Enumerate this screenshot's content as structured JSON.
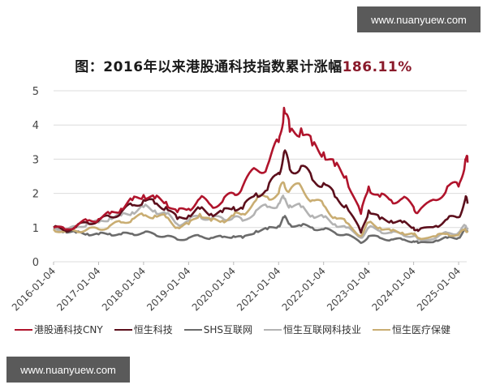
{
  "watermark": {
    "text": "www.nuanyuew.com"
  },
  "title": {
    "main": "图：2016年以来港股通科技指数累计涨幅",
    "highlight": "186.11%"
  },
  "chart_data": {
    "type": "line",
    "title": "图：2016年以来港股通科技指数累计涨幅186.11%",
    "xlabel": "",
    "ylabel": "",
    "ylim": [
      0,
      5
    ],
    "yticks": [
      0,
      1,
      2,
      3,
      4,
      5
    ],
    "xticks": [
      "2016-01-04",
      "2017-01-04",
      "2018-01-04",
      "2019-01-04",
      "2020-01-04",
      "2021-01-04",
      "2022-01-04",
      "2023-01-04",
      "2024-01-04",
      "2025-01-04"
    ],
    "grid": true,
    "legend_position": "bottom",
    "x": [
      2016.0,
      2016.25,
      2016.5,
      2016.75,
      2017.0,
      2017.25,
      2017.5,
      2017.75,
      2018.0,
      2018.25,
      2018.5,
      2018.75,
      2019.0,
      2019.25,
      2019.5,
      2019.75,
      2020.0,
      2020.2,
      2020.5,
      2020.75,
      2021.0,
      2021.12,
      2021.25,
      2021.5,
      2021.75,
      2022.0,
      2022.25,
      2022.5,
      2022.83,
      2023.0,
      2023.25,
      2023.5,
      2023.75,
      2024.0,
      2024.1,
      2024.5,
      2024.75,
      2025.0,
      2025.15,
      2025.2
    ],
    "series": [
      {
        "name": "港股通科技CNY",
        "color": "#b0142c",
        "values": [
          1.0,
          0.95,
          1.05,
          1.2,
          1.25,
          1.4,
          1.55,
          1.8,
          1.95,
          1.85,
          1.75,
          1.45,
          1.55,
          1.85,
          1.65,
          1.75,
          2.0,
          2.2,
          2.7,
          2.8,
          3.5,
          4.5,
          3.8,
          3.9,
          3.4,
          3.2,
          2.8,
          2.5,
          1.4,
          2.2,
          1.9,
          1.8,
          1.85,
          1.6,
          1.45,
          1.8,
          2.2,
          2.2,
          3.0,
          2.9
        ]
      },
      {
        "name": "恒生科技",
        "color": "#5c0f1c",
        "values": [
          1.0,
          0.92,
          1.02,
          1.15,
          1.2,
          1.32,
          1.45,
          1.65,
          1.8,
          1.7,
          1.6,
          1.25,
          1.35,
          1.55,
          1.4,
          1.45,
          1.6,
          1.55,
          2.0,
          2.1,
          2.6,
          3.2,
          2.7,
          2.8,
          2.4,
          2.3,
          1.9,
          1.65,
          0.85,
          1.5,
          1.25,
          1.2,
          1.15,
          1.0,
          0.9,
          1.05,
          1.25,
          1.3,
          1.85,
          1.7
        ]
      },
      {
        "name": "SHS互联网",
        "color": "#6b6b6b",
        "values": [
          0.95,
          0.9,
          0.85,
          0.82,
          0.8,
          0.82,
          0.8,
          0.82,
          0.85,
          0.8,
          0.75,
          0.65,
          0.7,
          0.75,
          0.7,
          0.72,
          0.75,
          0.7,
          0.9,
          0.95,
          1.05,
          1.3,
          1.1,
          1.05,
          1.0,
          0.95,
          0.85,
          0.8,
          0.55,
          0.75,
          0.7,
          0.65,
          0.65,
          0.6,
          0.55,
          0.62,
          0.7,
          0.7,
          0.95,
          0.9
        ]
      },
      {
        "name": "恒生互联网科技业",
        "color": "#b3b3b3",
        "values": [
          1.0,
          0.92,
          1.0,
          1.12,
          1.15,
          1.28,
          1.35,
          1.45,
          1.6,
          1.5,
          1.4,
          1.1,
          1.2,
          1.35,
          1.25,
          1.28,
          1.3,
          1.2,
          1.5,
          1.6,
          1.7,
          1.85,
          1.65,
          1.6,
          1.35,
          1.3,
          1.1,
          1.0,
          0.7,
          1.0,
          0.9,
          0.85,
          0.8,
          0.75,
          0.65,
          0.7,
          0.85,
          0.85,
          1.05,
          1.0
        ]
      },
      {
        "name": "恒生医疗保健",
        "color": "#c9ad72",
        "values": [
          0.95,
          0.88,
          0.9,
          0.95,
          0.95,
          1.05,
          1.15,
          1.25,
          1.35,
          1.35,
          1.3,
          1.0,
          1.1,
          1.4,
          1.2,
          1.2,
          1.35,
          1.4,
          1.8,
          1.9,
          2.0,
          2.3,
          2.1,
          2.2,
          1.8,
          1.65,
          1.3,
          1.15,
          0.75,
          1.15,
          1.0,
          0.9,
          0.85,
          0.8,
          0.7,
          0.75,
          0.82,
          0.78,
          0.95,
          0.9
        ]
      }
    ]
  },
  "legend": [
    {
      "label": "港股通科技CNY"
    },
    {
      "label": "恒生科技"
    },
    {
      "label": "SHS互联网"
    },
    {
      "label": "恒生互联网科技业"
    },
    {
      "label": "恒生医疗保健"
    }
  ]
}
